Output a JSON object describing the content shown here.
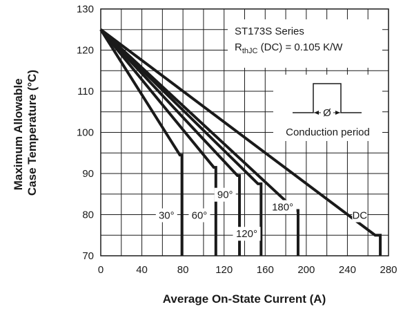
{
  "chart_data": {
    "type": "line",
    "title": "",
    "xlabel": "Average On-State Current (A)",
    "ylabel_line1": "Maximum Allowable",
    "ylabel_line2": "Case Temperature (°C)",
    "xlim": [
      0,
      280
    ],
    "ylim": [
      70,
      130
    ],
    "xticks": [
      0,
      40,
      80,
      120,
      160,
      200,
      240,
      280
    ],
    "yticks": [
      70,
      80,
      90,
      100,
      110,
      120,
      130
    ],
    "grid": true,
    "minor_grid_x_step": 20,
    "minor_grid_y_step": 5,
    "series": [
      {
        "name": "30°",
        "points": [
          [
            0,
            125
          ],
          [
            77,
            94.5
          ],
          [
            79,
            94.5
          ],
          [
            79,
            70
          ]
        ]
      },
      {
        "name": "60°",
        "points": [
          [
            0,
            125
          ],
          [
            110,
            91.5
          ],
          [
            112,
            91.5
          ],
          [
            112,
            70
          ]
        ]
      },
      {
        "name": "90°",
        "points": [
          [
            0,
            125
          ],
          [
            133,
            89.5
          ],
          [
            135,
            89.5
          ],
          [
            135,
            70
          ]
        ]
      },
      {
        "name": "120°",
        "points": [
          [
            0,
            125
          ],
          [
            153,
            87.5
          ],
          [
            156,
            87.5
          ],
          [
            156,
            70
          ]
        ]
      },
      {
        "name": "180°",
        "points": [
          [
            0,
            125
          ],
          [
            190,
            81
          ],
          [
            192,
            81
          ],
          [
            192,
            70
          ]
        ]
      },
      {
        "name": "DC",
        "points": [
          [
            0,
            125
          ],
          [
            267,
            75
          ],
          [
            272,
            75
          ],
          [
            272,
            70
          ]
        ]
      }
    ],
    "curve_labels": [
      {
        "text": "30°",
        "x": 64,
        "y": 79
      },
      {
        "text": "60°",
        "x": 96,
        "y": 79
      },
      {
        "text": "90°",
        "x": 121,
        "y": 84
      },
      {
        "text": "120°",
        "x": 142,
        "y": 74.5
      },
      {
        "text": "180°",
        "x": 177,
        "y": 81
      },
      {
        "text": "DC",
        "x": 252,
        "y": 79
      }
    ],
    "annotations": {
      "series_name": "ST173S Series",
      "rth_prefix": "R",
      "rth_subscript": "thJC",
      "rth_suffix": " (DC) = 0.105 K/W",
      "conduction_label": "Conduction period",
      "phi_symbol": "Ø"
    },
    "line_color": "#1a1a1a",
    "grid_color": "#1a1a1a"
  }
}
